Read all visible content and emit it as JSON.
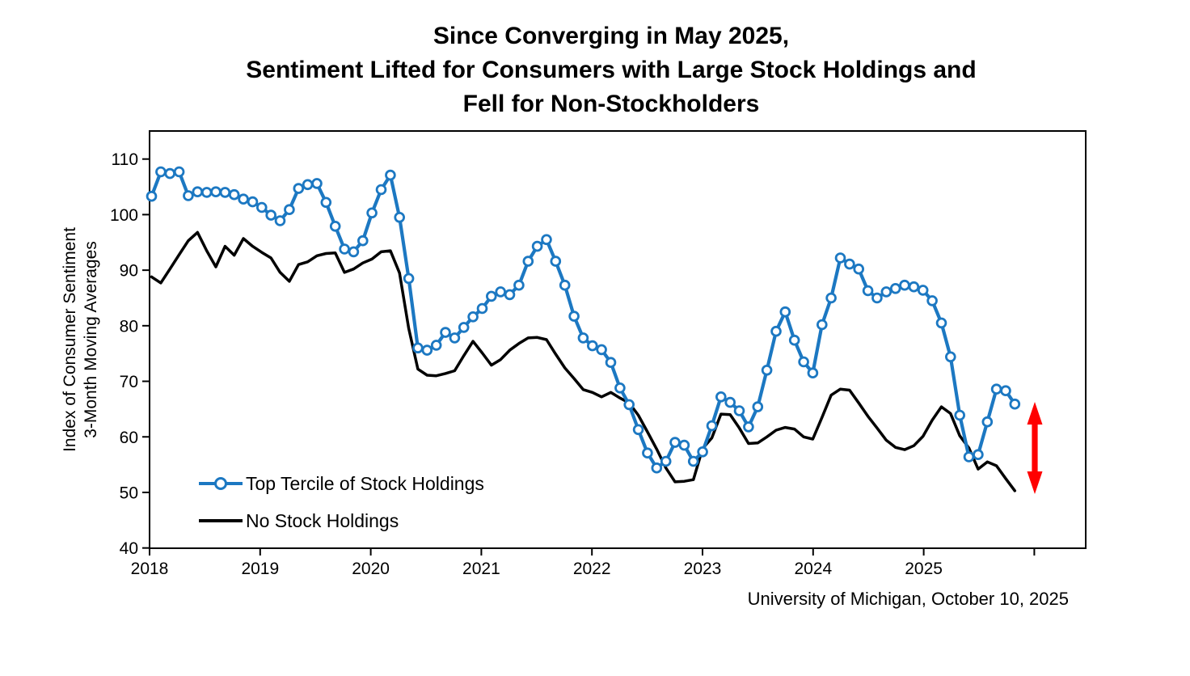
{
  "title": {
    "line1": "Since Converging in May 2025,",
    "line2": "Sentiment Lifted for Consumers with Large Stock Holdings and",
    "line3": "Fell for Non-Stockholders"
  },
  "attribution": "University of Michigan, October 10, 2025",
  "y_axis": {
    "label_line1": "Index of Consumer Sentiment",
    "label_line2": "3-Month Moving Averages",
    "ticks": [
      110,
      100,
      90,
      80,
      70,
      60,
      50,
      40
    ]
  },
  "x_axis": {
    "year_labels": [
      "2018",
      "2019",
      "2020",
      "2021",
      "2022",
      "2023",
      "2024",
      "2025"
    ]
  },
  "legend": [
    {
      "label": "Top Tercile of Stock Holdings",
      "color": "#1C78C2",
      "marker": "open-circle"
    },
    {
      "label": "No Stock Holdings",
      "color": "#000000",
      "marker": "line"
    }
  ],
  "annotation_arrow": {
    "color": "#FF0000",
    "style": "double-headed-vertical",
    "spans": "gap between series at series end"
  },
  "chart_data": {
    "type": "line",
    "title": "Since Converging in May 2025, Sentiment Lifted for Consumers with Large Stock Holdings and Fell for Non-Stockholders",
    "xlabel": "",
    "ylabel": "Index of Consumer Sentiment, 3-Month Moving Averages",
    "x_start": "2018-01",
    "frequency": "monthly",
    "ylim": [
      40,
      110
    ],
    "x_tick_years": [
      2018,
      2019,
      2020,
      2021,
      2022,
      2023,
      2024,
      2025
    ],
    "grid": false,
    "legend_position": "inside-lower-left",
    "series": [
      {
        "name": "Top Tercile of Stock Holdings",
        "color": "#1C78C2",
        "marker": "circle",
        "values": [
          103.3,
          107.7,
          107.4,
          107.7,
          103.4,
          104.1,
          104.0,
          104.1,
          104.0,
          103.6,
          102.8,
          102.3,
          101.3,
          99.9,
          98.9,
          100.9,
          104.7,
          105.4,
          105.6,
          102.2,
          97.9,
          93.8,
          93.3,
          95.3,
          100.3,
          104.5,
          107.1,
          99.5,
          88.5,
          76.0,
          75.6,
          76.5,
          78.8,
          77.8,
          79.7,
          81.6,
          83.1,
          85.3,
          86.1,
          85.6,
          87.3,
          91.6,
          94.3,
          95.5,
          91.6,
          87.3,
          81.7,
          77.8,
          76.4,
          75.7,
          73.4,
          68.8,
          65.8,
          61.3,
          57.1,
          54.4,
          55.6,
          59.0,
          58.5,
          55.6,
          57.3,
          62.0,
          67.2,
          66.2,
          64.7,
          61.8,
          65.4,
          72.0,
          79.0,
          82.5,
          77.4,
          73.5,
          71.5,
          80.2,
          85.0,
          92.2,
          91.1,
          90.2,
          86.3,
          85.0,
          86.1,
          86.7,
          87.3,
          87.0,
          86.4,
          84.5,
          80.5,
          74.4,
          63.9,
          56.4,
          56.8,
          62.7,
          68.6,
          68.3,
          65.9
        ]
      },
      {
        "name": "No Stock Holdings",
        "color": "#000000",
        "marker": "none",
        "values": [
          88.8,
          87.7,
          90.2,
          92.8,
          95.3,
          96.8,
          93.5,
          90.6,
          94.3,
          92.7,
          95.7,
          94.3,
          93.2,
          92.2,
          89.6,
          88.0,
          91.0,
          91.5,
          92.6,
          93.0,
          93.1,
          89.6,
          90.2,
          91.3,
          92.0,
          93.3,
          93.5,
          89.5,
          79.5,
          72.2,
          71.1,
          71.0,
          71.4,
          71.9,
          74.6,
          77.2,
          75.1,
          72.9,
          73.9,
          75.6,
          76.8,
          77.8,
          77.9,
          77.5,
          74.9,
          72.4,
          70.5,
          68.5,
          68.0,
          67.2,
          68.0,
          67.0,
          66.1,
          63.9,
          60.9,
          57.8,
          54.4,
          51.9,
          52.0,
          52.3,
          57.9,
          59.8,
          64.1,
          64.0,
          61.6,
          58.8,
          58.9,
          60.0,
          61.2,
          61.7,
          61.4,
          60.0,
          59.6,
          63.5,
          67.5,
          68.6,
          68.4,
          66.1,
          63.7,
          61.6,
          59.4,
          58.1,
          57.7,
          58.4,
          60.1,
          63.0,
          65.4,
          64.2,
          60.2,
          58.0,
          54.2,
          55.5,
          54.8,
          52.5,
          50.3
        ]
      }
    ]
  }
}
